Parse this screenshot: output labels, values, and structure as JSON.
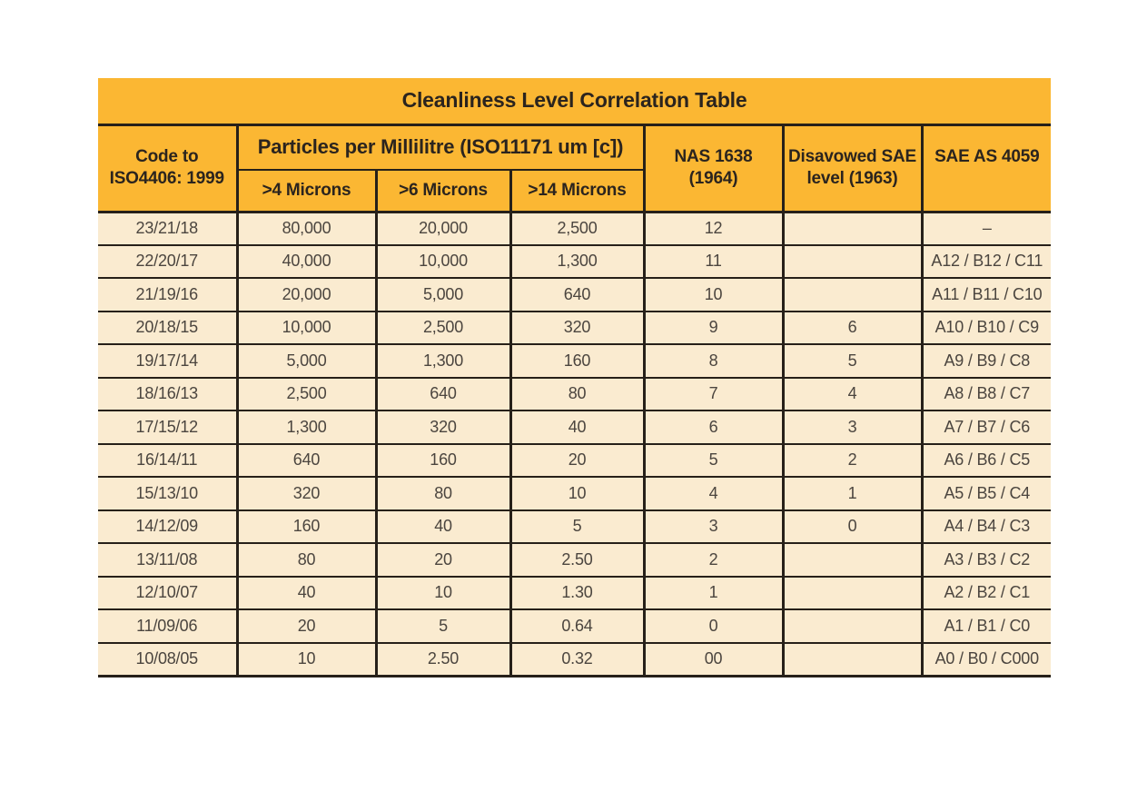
{
  "colors": {
    "header_bg": "#FBB733",
    "row_bg": "#FAEBD0",
    "border": "#262019",
    "header_text": "#2B241E",
    "data_text": "#4B453F",
    "page_bg": "#FFFFFF"
  },
  "chart_data": {
    "type": "table",
    "title": "Cleanliness Level Correlation Table",
    "header": {
      "code": {
        "line1": "Code to",
        "line2": "ISO4406: 1999"
      },
      "particles_group": "Particles per Millilitre (ISO11171 um [c])",
      "microns": [
        ">4 Microns",
        ">6 Microns",
        ">14 Microns"
      ],
      "nas": {
        "line1": "NAS 1638",
        "line2": "(1964)"
      },
      "disavowed": {
        "line1": "Disavowed SAE",
        "line2": "level (1963)"
      },
      "sae": "SAE AS 4059"
    },
    "columns": [
      "Code to ISO4406: 1999",
      ">4 Microns",
      ">6 Microns",
      ">14 Microns",
      "NAS 1638 (1964)",
      "Disavowed SAE level (1963)",
      "SAE AS 4059"
    ],
    "rows": [
      [
        "23/21/18",
        "80,000",
        "20,000",
        "2,500",
        "12",
        "",
        "–"
      ],
      [
        "22/20/17",
        "40,000",
        "10,000",
        "1,300",
        "11",
        "",
        "A12 / B12 / C11"
      ],
      [
        "21/19/16",
        "20,000",
        "5,000",
        "640",
        "10",
        "",
        "A11 / B11 / C10"
      ],
      [
        "20/18/15",
        "10,000",
        "2,500",
        "320",
        "9",
        "6",
        "A10 / B10 / C9"
      ],
      [
        "19/17/14",
        "5,000",
        "1,300",
        "160",
        "8",
        "5",
        "A9 / B9 / C8"
      ],
      [
        "18/16/13",
        "2,500",
        "640",
        "80",
        "7",
        "4",
        "A8 / B8 / C7"
      ],
      [
        "17/15/12",
        "1,300",
        "320",
        "40",
        "6",
        "3",
        "A7 / B7 / C6"
      ],
      [
        "16/14/11",
        "640",
        "160",
        "20",
        "5",
        "2",
        "A6 / B6 / C5"
      ],
      [
        "15/13/10",
        "320",
        "80",
        "10",
        "4",
        "1",
        "A5 / B5 / C4"
      ],
      [
        "14/12/09",
        "160",
        "40",
        "5",
        "3",
        "0",
        "A4 / B4 / C3"
      ],
      [
        "13/11/08",
        "80",
        "20",
        "2.50",
        "2",
        "",
        "A3 / B3 / C2"
      ],
      [
        "12/10/07",
        "40",
        "10",
        "1.30",
        "1",
        "",
        "A2 / B2 / C1"
      ],
      [
        "11/09/06",
        "20",
        "5",
        "0.64",
        "0",
        "",
        "A1 / B1 / C0"
      ],
      [
        "10/08/05",
        "10",
        "2.50",
        "0.32",
        "00",
        "",
        "A0 / B0 / C000"
      ]
    ]
  }
}
